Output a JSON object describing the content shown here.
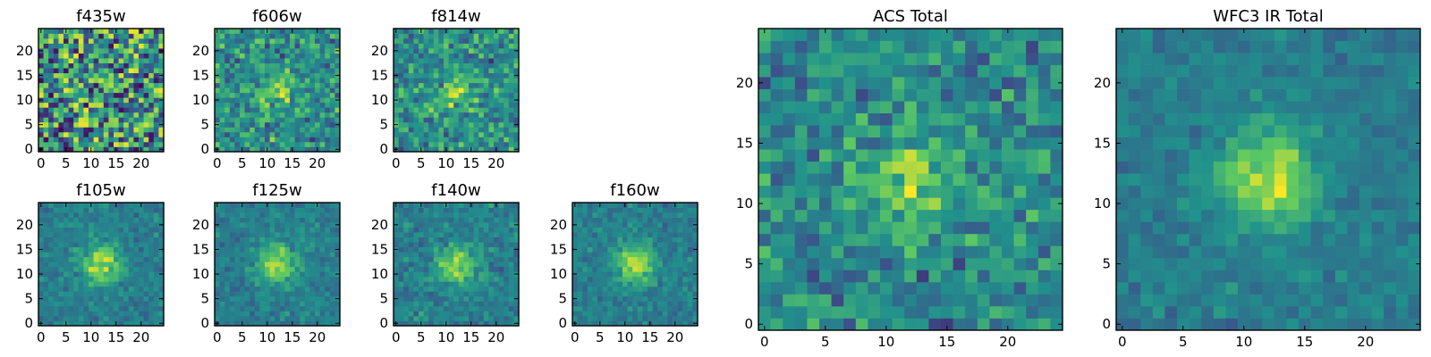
{
  "chart_data": [
    {
      "type": "heatmap",
      "title": "f435w",
      "size": 25,
      "peak": 0.0,
      "seed": 11,
      "xticks": [
        0,
        5,
        10,
        15,
        20
      ],
      "yticks": [
        0,
        5,
        10,
        15,
        20
      ],
      "xlim": [
        0,
        25
      ],
      "ylim": [
        0,
        25
      ]
    },
    {
      "type": "heatmap",
      "title": "f606w",
      "size": 25,
      "peak": 0.45,
      "seed": 23,
      "xticks": [
        0,
        5,
        10,
        15,
        20
      ],
      "yticks": [
        0,
        5,
        10,
        15,
        20
      ],
      "xlim": [
        0,
        25
      ],
      "ylim": [
        0,
        25
      ]
    },
    {
      "type": "heatmap",
      "title": "f814w",
      "size": 25,
      "peak": 0.45,
      "seed": 37,
      "xticks": [
        0,
        5,
        10,
        15,
        20
      ],
      "yticks": [
        0,
        5,
        10,
        15,
        20
      ],
      "xlim": [
        0,
        25
      ],
      "ylim": [
        0,
        25
      ]
    },
    {
      "type": "heatmap",
      "title": "f105w",
      "size": 25,
      "peak": 0.85,
      "seed": 41,
      "xticks": [
        0,
        5,
        10,
        15,
        20
      ],
      "yticks": [
        0,
        5,
        10,
        15,
        20
      ],
      "xlim": [
        0,
        25
      ],
      "ylim": [
        0,
        25
      ]
    },
    {
      "type": "heatmap",
      "title": "f125w",
      "size": 25,
      "peak": 0.85,
      "seed": 53,
      "xticks": [
        0,
        5,
        10,
        15,
        20
      ],
      "yticks": [
        0,
        5,
        10,
        15,
        20
      ],
      "xlim": [
        0,
        25
      ],
      "ylim": [
        0,
        25
      ]
    },
    {
      "type": "heatmap",
      "title": "f140w",
      "size": 25,
      "peak": 0.8,
      "seed": 67,
      "xticks": [
        0,
        5,
        10,
        15,
        20
      ],
      "yticks": [
        0,
        5,
        10,
        15,
        20
      ],
      "xlim": [
        0,
        25
      ],
      "ylim": [
        0,
        25
      ]
    },
    {
      "type": "heatmap",
      "title": "f160w",
      "size": 25,
      "peak": 0.85,
      "seed": 79,
      "xticks": [
        0,
        5,
        10,
        15,
        20
      ],
      "yticks": [
        0,
        5,
        10,
        15,
        20
      ],
      "xlim": [
        0,
        25
      ],
      "ylim": [
        0,
        25
      ]
    },
    {
      "type": "heatmap",
      "title": "ACS Total",
      "size": 25,
      "peak": 0.55,
      "seed": 83,
      "xticks": [
        0,
        5,
        10,
        15,
        20
      ],
      "yticks": [
        0,
        5,
        10,
        15,
        20
      ],
      "xlim": [
        0,
        25
      ],
      "ylim": [
        0,
        25
      ]
    },
    {
      "type": "heatmap",
      "title": "WFC3 IR Total",
      "size": 25,
      "peak": 0.9,
      "seed": 97,
      "xticks": [
        0,
        5,
        10,
        15,
        20
      ],
      "yticks": [
        0,
        5,
        10,
        15,
        20
      ],
      "xlim": [
        0,
        25
      ],
      "ylim": [
        0,
        25
      ]
    }
  ],
  "colormap": [
    "#440154",
    "#3b528b",
    "#21918c",
    "#5ec962",
    "#fde725"
  ]
}
